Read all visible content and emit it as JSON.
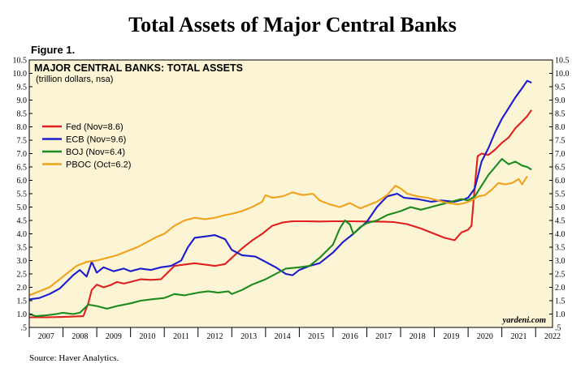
{
  "page": {
    "title": "Total Assets of Major Central Banks",
    "figure_label": "Figure 1.",
    "source": "Source: Haver Analytics."
  },
  "chart_data": {
    "type": "line",
    "title": "MAJOR CENTRAL BANKS: TOTAL ASSETS",
    "subtitle": "(trillion dollars, nsa)",
    "credit": "yardeni.com",
    "xlabel": "",
    "ylabel": "",
    "xlim": [
      2007.0,
      2022.5
    ],
    "ylim": [
      0.5,
      10.5
    ],
    "y_ticks": [
      0.5,
      1.0,
      1.5,
      2.0,
      2.5,
      3.0,
      3.5,
      4.0,
      4.5,
      5.0,
      5.5,
      6.0,
      6.5,
      7.0,
      7.5,
      8.0,
      8.5,
      9.0,
      9.5,
      10.0,
      10.5
    ],
    "y_tick_labels": [
      ".5",
      "1.0",
      "1.5",
      "2.0",
      "2.5",
      "3.0",
      "3.5",
      "4.0",
      "4.5",
      "5.0",
      "5.5",
      "6.0",
      "6.5",
      "7.0",
      "7.5",
      "8.0",
      "8.5",
      "9.0",
      "9.5",
      "10.0",
      "10.5"
    ],
    "x_tick_labels": [
      "2007",
      "2008",
      "2009",
      "2010",
      "2011",
      "2012",
      "2013",
      "2014",
      "2015",
      "2016",
      "2017",
      "2018",
      "2019",
      "2020",
      "2021",
      "2022"
    ],
    "grid": false,
    "legend_position": "upper-left",
    "background_color": "#fbf5d6",
    "series": [
      {
        "name": "Fed (Nov=8.6)",
        "color": "#e0201e",
        "points": [
          [
            2007.0,
            0.88
          ],
          [
            2007.5,
            0.88
          ],
          [
            2008.0,
            0.89
          ],
          [
            2008.6,
            0.92
          ],
          [
            2008.75,
            1.4
          ],
          [
            2008.85,
            1.9
          ],
          [
            2009.0,
            2.1
          ],
          [
            2009.2,
            2.0
          ],
          [
            2009.4,
            2.08
          ],
          [
            2009.6,
            2.2
          ],
          [
            2009.8,
            2.14
          ],
          [
            2010.0,
            2.2
          ],
          [
            2010.3,
            2.3
          ],
          [
            2010.6,
            2.28
          ],
          [
            2010.9,
            2.3
          ],
          [
            2011.1,
            2.55
          ],
          [
            2011.3,
            2.8
          ],
          [
            2011.6,
            2.85
          ],
          [
            2011.9,
            2.9
          ],
          [
            2012.2,
            2.85
          ],
          [
            2012.5,
            2.8
          ],
          [
            2012.8,
            2.87
          ],
          [
            2013.0,
            3.1
          ],
          [
            2013.3,
            3.45
          ],
          [
            2013.6,
            3.75
          ],
          [
            2013.9,
            4.0
          ],
          [
            2014.2,
            4.3
          ],
          [
            2014.5,
            4.42
          ],
          [
            2014.8,
            4.47
          ],
          [
            2015.2,
            4.47
          ],
          [
            2015.6,
            4.46
          ],
          [
            2016.0,
            4.47
          ],
          [
            2016.5,
            4.47
          ],
          [
            2017.0,
            4.46
          ],
          [
            2017.5,
            4.45
          ],
          [
            2017.8,
            4.44
          ],
          [
            2018.2,
            4.36
          ],
          [
            2018.6,
            4.2
          ],
          [
            2019.0,
            4.0
          ],
          [
            2019.3,
            3.85
          ],
          [
            2019.6,
            3.76
          ],
          [
            2019.8,
            4.05
          ],
          [
            2020.0,
            4.15
          ],
          [
            2020.1,
            4.3
          ],
          [
            2020.2,
            5.8
          ],
          [
            2020.28,
            6.9
          ],
          [
            2020.4,
            7.0
          ],
          [
            2020.6,
            6.95
          ],
          [
            2020.8,
            7.15
          ],
          [
            2021.0,
            7.4
          ],
          [
            2021.2,
            7.6
          ],
          [
            2021.4,
            7.95
          ],
          [
            2021.6,
            8.2
          ],
          [
            2021.75,
            8.4
          ],
          [
            2021.88,
            8.63
          ]
        ]
      },
      {
        "name": "ECB (Nov=9.6)",
        "color": "#1c1ccc",
        "points": [
          [
            2007.0,
            1.55
          ],
          [
            2007.3,
            1.6
          ],
          [
            2007.6,
            1.75
          ],
          [
            2007.9,
            1.95
          ],
          [
            2008.1,
            2.2
          ],
          [
            2008.3,
            2.45
          ],
          [
            2008.5,
            2.65
          ],
          [
            2008.7,
            2.4
          ],
          [
            2008.85,
            2.95
          ],
          [
            2009.0,
            2.55
          ],
          [
            2009.2,
            2.75
          ],
          [
            2009.5,
            2.6
          ],
          [
            2009.8,
            2.7
          ],
          [
            2010.0,
            2.6
          ],
          [
            2010.3,
            2.7
          ],
          [
            2010.6,
            2.65
          ],
          [
            2010.9,
            2.75
          ],
          [
            2011.2,
            2.8
          ],
          [
            2011.5,
            3.0
          ],
          [
            2011.7,
            3.5
          ],
          [
            2011.9,
            3.85
          ],
          [
            2012.2,
            3.9
          ],
          [
            2012.5,
            3.95
          ],
          [
            2012.8,
            3.8
          ],
          [
            2013.0,
            3.4
          ],
          [
            2013.3,
            3.2
          ],
          [
            2013.7,
            3.15
          ],
          [
            2014.0,
            2.95
          ],
          [
            2014.3,
            2.75
          ],
          [
            2014.6,
            2.5
          ],
          [
            2014.8,
            2.45
          ],
          [
            2015.0,
            2.65
          ],
          [
            2015.3,
            2.8
          ],
          [
            2015.6,
            2.9
          ],
          [
            2016.0,
            3.3
          ],
          [
            2016.3,
            3.7
          ],
          [
            2016.6,
            4.0
          ],
          [
            2017.0,
            4.45
          ],
          [
            2017.3,
            5.0
          ],
          [
            2017.6,
            5.4
          ],
          [
            2017.9,
            5.5
          ],
          [
            2018.1,
            5.35
          ],
          [
            2018.5,
            5.3
          ],
          [
            2018.9,
            5.2
          ],
          [
            2019.2,
            5.25
          ],
          [
            2019.6,
            5.2
          ],
          [
            2019.9,
            5.3
          ],
          [
            2020.0,
            5.35
          ],
          [
            2020.2,
            5.7
          ],
          [
            2020.4,
            6.7
          ],
          [
            2020.6,
            7.2
          ],
          [
            2020.8,
            7.8
          ],
          [
            2021.0,
            8.3
          ],
          [
            2021.2,
            8.7
          ],
          [
            2021.4,
            9.1
          ],
          [
            2021.6,
            9.45
          ],
          [
            2021.75,
            9.72
          ],
          [
            2021.88,
            9.65
          ]
        ]
      },
      {
        "name": "BOJ (Nov=6.4)",
        "color": "#1d8a1d",
        "points": [
          [
            2007.0,
            1.0
          ],
          [
            2007.2,
            0.92
          ],
          [
            2007.5,
            0.95
          ],
          [
            2007.8,
            1.0
          ],
          [
            2008.0,
            1.05
          ],
          [
            2008.3,
            1.0
          ],
          [
            2008.5,
            1.05
          ],
          [
            2008.75,
            1.35
          ],
          [
            2009.0,
            1.3
          ],
          [
            2009.3,
            1.2
          ],
          [
            2009.6,
            1.3
          ],
          [
            2010.0,
            1.4
          ],
          [
            2010.3,
            1.5
          ],
          [
            2010.6,
            1.55
          ],
          [
            2011.0,
            1.6
          ],
          [
            2011.3,
            1.75
          ],
          [
            2011.6,
            1.7
          ],
          [
            2012.0,
            1.8
          ],
          [
            2012.3,
            1.85
          ],
          [
            2012.6,
            1.8
          ],
          [
            2012.9,
            1.85
          ],
          [
            2013.0,
            1.75
          ],
          [
            2013.3,
            1.9
          ],
          [
            2013.6,
            2.1
          ],
          [
            2014.0,
            2.3
          ],
          [
            2014.3,
            2.5
          ],
          [
            2014.6,
            2.7
          ],
          [
            2015.0,
            2.75
          ],
          [
            2015.3,
            2.8
          ],
          [
            2015.6,
            3.1
          ],
          [
            2016.0,
            3.6
          ],
          [
            2016.2,
            4.2
          ],
          [
            2016.35,
            4.5
          ],
          [
            2016.5,
            4.35
          ],
          [
            2016.6,
            4.0
          ],
          [
            2016.8,
            4.25
          ],
          [
            2017.0,
            4.4
          ],
          [
            2017.3,
            4.5
          ],
          [
            2017.6,
            4.7
          ],
          [
            2018.0,
            4.85
          ],
          [
            2018.3,
            5.0
          ],
          [
            2018.6,
            4.9
          ],
          [
            2018.9,
            5.0
          ],
          [
            2019.2,
            5.1
          ],
          [
            2019.5,
            5.2
          ],
          [
            2019.8,
            5.3
          ],
          [
            2020.0,
            5.25
          ],
          [
            2020.2,
            5.4
          ],
          [
            2020.4,
            5.8
          ],
          [
            2020.6,
            6.2
          ],
          [
            2020.8,
            6.5
          ],
          [
            2021.0,
            6.8
          ],
          [
            2021.2,
            6.6
          ],
          [
            2021.4,
            6.7
          ],
          [
            2021.6,
            6.55
          ],
          [
            2021.75,
            6.5
          ],
          [
            2021.88,
            6.4
          ]
        ]
      },
      {
        "name": "PBOC (Oct=6.2)",
        "color": "#f0a21b",
        "points": [
          [
            2007.0,
            1.7
          ],
          [
            2007.3,
            1.85
          ],
          [
            2007.6,
            2.0
          ],
          [
            2007.9,
            2.3
          ],
          [
            2008.1,
            2.5
          ],
          [
            2008.4,
            2.8
          ],
          [
            2008.7,
            2.95
          ],
          [
            2009.0,
            3.0
          ],
          [
            2009.3,
            3.1
          ],
          [
            2009.6,
            3.2
          ],
          [
            2009.9,
            3.35
          ],
          [
            2010.2,
            3.5
          ],
          [
            2010.5,
            3.7
          ],
          [
            2010.8,
            3.9
          ],
          [
            2011.0,
            4.0
          ],
          [
            2011.3,
            4.3
          ],
          [
            2011.6,
            4.5
          ],
          [
            2011.9,
            4.6
          ],
          [
            2012.2,
            4.55
          ],
          [
            2012.5,
            4.6
          ],
          [
            2012.8,
            4.7
          ],
          [
            2013.0,
            4.75
          ],
          [
            2013.3,
            4.85
          ],
          [
            2013.6,
            5.0
          ],
          [
            2013.9,
            5.2
          ],
          [
            2014.0,
            5.45
          ],
          [
            2014.2,
            5.35
          ],
          [
            2014.5,
            5.4
          ],
          [
            2014.8,
            5.55
          ],
          [
            2015.1,
            5.45
          ],
          [
            2015.4,
            5.5
          ],
          [
            2015.6,
            5.25
          ],
          [
            2015.9,
            5.1
          ],
          [
            2016.2,
            5.0
          ],
          [
            2016.5,
            5.15
          ],
          [
            2016.8,
            4.95
          ],
          [
            2017.0,
            5.05
          ],
          [
            2017.3,
            5.2
          ],
          [
            2017.6,
            5.45
          ],
          [
            2017.85,
            5.8
          ],
          [
            2018.0,
            5.7
          ],
          [
            2018.2,
            5.5
          ],
          [
            2018.5,
            5.4
          ],
          [
            2018.8,
            5.35
          ],
          [
            2019.1,
            5.25
          ],
          [
            2019.4,
            5.15
          ],
          [
            2019.7,
            5.1
          ],
          [
            2019.9,
            5.15
          ],
          [
            2020.1,
            5.25
          ],
          [
            2020.3,
            5.4
          ],
          [
            2020.5,
            5.45
          ],
          [
            2020.7,
            5.65
          ],
          [
            2020.9,
            5.9
          ],
          [
            2021.1,
            5.85
          ],
          [
            2021.3,
            5.9
          ],
          [
            2021.5,
            6.05
          ],
          [
            2021.6,
            5.85
          ],
          [
            2021.75,
            6.15
          ]
        ]
      }
    ]
  }
}
